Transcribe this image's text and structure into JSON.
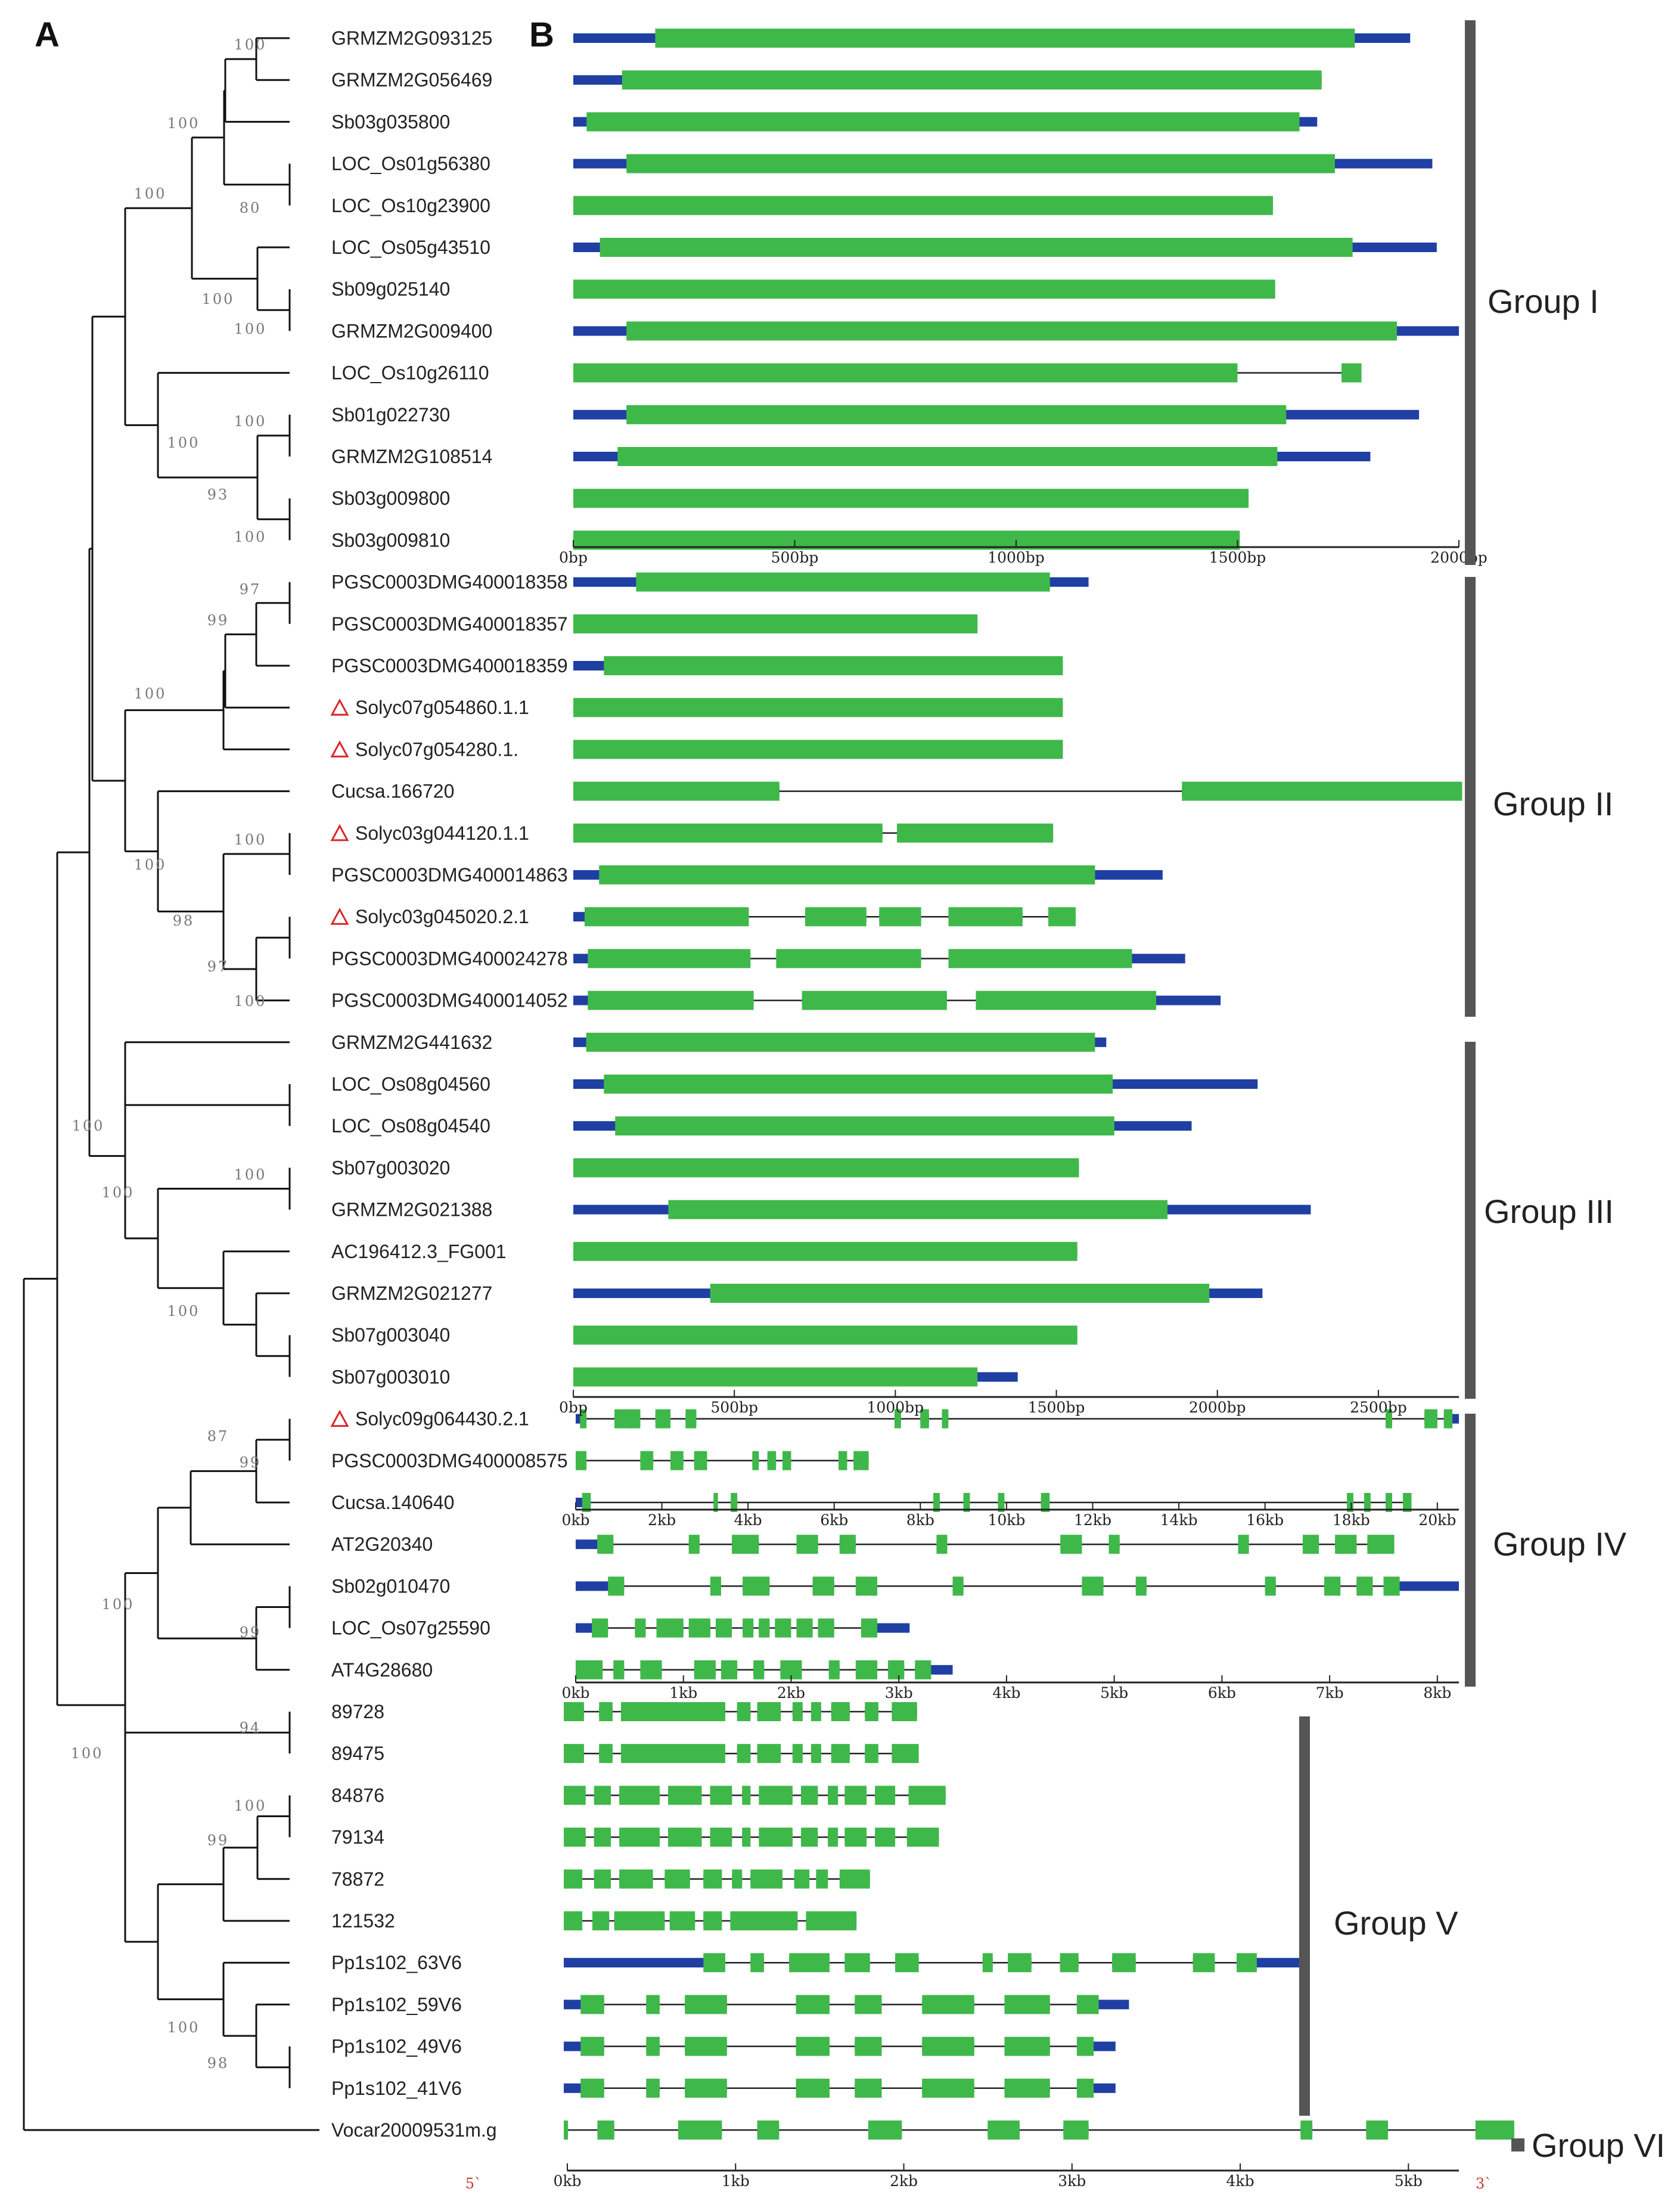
{
  "panels": {
    "a": "A",
    "b": "B"
  },
  "colors": {
    "exon": "#3fb84a",
    "utr": "#1f3fa3",
    "intron": "#222222",
    "bar": "#555555",
    "tree": "#111111",
    "marker": "#d8262a"
  },
  "legend_marks": {
    "five_prime": "5`",
    "three_prime": "3`"
  },
  "groups": [
    {
      "label": "Group I"
    },
    {
      "label": "Group II"
    },
    {
      "label": "Group III"
    },
    {
      "label": "Group IV"
    },
    {
      "label": "Group V"
    },
    {
      "label": "Group VI"
    }
  ],
  "axes": [
    {
      "max": 2000,
      "ticks": [
        "0bp",
        "500bp",
        "1000bp",
        "1500bp",
        "2000bp"
      ]
    },
    {
      "max": 2750,
      "ticks": [
        "0bp",
        "500bp",
        "1000bp",
        "1500bp",
        "2000bp",
        "2500bp"
      ]
    },
    {
      "max": 20500,
      "ticks": [
        "0kb",
        "2kb",
        "4kb",
        "6kb",
        "8kb",
        "10kb",
        "12kb",
        "14kb",
        "16kb",
        "18kb",
        "20kb"
      ]
    },
    {
      "max": 8200,
      "ticks": [
        "0kb",
        "1kb",
        "2kb",
        "3kb",
        "4kb",
        "5kb",
        "6kb",
        "7kb",
        "8kb"
      ]
    },
    {
      "max": 5300,
      "ticks": [
        "0kb",
        "1kb",
        "2kb",
        "3kb",
        "4kb",
        "5kb"
      ]
    }
  ],
  "genes": [
    {
      "name": "GRMZM2G093125",
      "axis": 0,
      "len": 1890,
      "exons": [
        [
          185,
          1765
        ]
      ]
    },
    {
      "name": "GRMZM2G056469",
      "axis": 0,
      "len": 1690,
      "exons": [
        [
          110,
          1690
        ]
      ]
    },
    {
      "name": "Sb03g035800",
      "axis": 0,
      "len": 1680,
      "exons": [
        [
          30,
          1640
        ]
      ]
    },
    {
      "name": "LOC_Os01g56380",
      "axis": 0,
      "len": 1940,
      "exons": [
        [
          120,
          1720
        ]
      ]
    },
    {
      "name": "LOC_Os10g23900",
      "axis": 0,
      "len": 1580,
      "exons": [
        [
          0,
          1580
        ]
      ]
    },
    {
      "name": "LOC_Os05g43510",
      "axis": 0,
      "len": 1950,
      "exons": [
        [
          60,
          1760
        ]
      ]
    },
    {
      "name": "Sb09g025140",
      "axis": 0,
      "len": 1585,
      "exons": [
        [
          0,
          1585
        ]
      ]
    },
    {
      "name": "GRMZM2G009400",
      "axis": 0,
      "len": 2000,
      "exons": [
        [
          120,
          1860
        ]
      ]
    },
    {
      "name": "LOC_Os10g26110",
      "axis": 0,
      "len": 1780,
      "exons": [
        [
          0,
          1500
        ],
        [
          1735,
          1780
        ]
      ]
    },
    {
      "name": "Sb01g022730",
      "axis": 0,
      "len": 1910,
      "exons": [
        [
          120,
          1610
        ]
      ]
    },
    {
      "name": "GRMZM2G108514",
      "axis": 0,
      "len": 1800,
      "exons": [
        [
          100,
          1590
        ]
      ]
    },
    {
      "name": "Sb03g009800",
      "axis": 0,
      "len": 1525,
      "exons": [
        [
          0,
          1525
        ]
      ]
    },
    {
      "name": "Sb03g009810",
      "axis": 0,
      "len": 1505,
      "exons": [
        [
          0,
          1505
        ]
      ]
    },
    {
      "name": "PGSC0003DMG400018358",
      "axis": 1,
      "len": 1600,
      "exons": [
        [
          195,
          1480
        ]
      ]
    },
    {
      "name": "PGSC0003DMG400018357",
      "axis": 1,
      "len": 1255,
      "exons": [
        [
          0,
          1255
        ]
      ]
    },
    {
      "name": "PGSC0003DMG400018359",
      "axis": 1,
      "len": 1520,
      "exons": [
        [
          95,
          1520
        ]
      ]
    },
    {
      "name": "Solyc07g054860.1.1",
      "axis": 1,
      "len": 1520,
      "exons": [
        [
          0,
          1520
        ]
      ],
      "marker": true
    },
    {
      "name": "Solyc07g054280.1.",
      "axis": 1,
      "len": 1520,
      "exons": [
        [
          0,
          1520
        ]
      ],
      "marker": true
    },
    {
      "name": "Cucsa.166720",
      "axis": 1,
      "len": 2760,
      "exons": [
        [
          0,
          640
        ],
        [
          1890,
          2760
        ]
      ]
    },
    {
      "name": "Solyc03g044120.1.1",
      "axis": 1,
      "len": 1490,
      "exons": [
        [
          0,
          960
        ],
        [
          1005,
          1490
        ]
      ],
      "marker": true
    },
    {
      "name": "PGSC0003DMG400014863",
      "axis": 1,
      "len": 1830,
      "exons": [
        [
          80,
          1620
        ]
      ]
    },
    {
      "name": "Solyc03g045020.2.1",
      "axis": 1,
      "len": 1560,
      "exons": [
        [
          35,
          545
        ],
        [
          720,
          910
        ],
        [
          950,
          1080
        ],
        [
          1165,
          1395
        ],
        [
          1475,
          1560
        ]
      ],
      "marker": true
    },
    {
      "name": "PGSC0003DMG400024278",
      "axis": 1,
      "len": 1900,
      "exons": [
        [
          45,
          550
        ],
        [
          630,
          1080
        ],
        [
          1165,
          1735
        ]
      ]
    },
    {
      "name": "PGSC0003DMG400014052",
      "axis": 1,
      "len": 2010,
      "exons": [
        [
          45,
          560
        ],
        [
          710,
          1160
        ],
        [
          1250,
          1810
        ]
      ]
    },
    {
      "name": "GRMZM2G441632",
      "axis": 1,
      "len": 1655,
      "exons": [
        [
          40,
          1620
        ]
      ]
    },
    {
      "name": "LOC_Os08g04560",
      "axis": 1,
      "len": 2125,
      "exons": [
        [
          95,
          1675
        ]
      ]
    },
    {
      "name": "LOC_Os08g04540",
      "axis": 1,
      "len": 1920,
      "exons": [
        [
          130,
          1680
        ]
      ]
    },
    {
      "name": "Sb07g003020",
      "axis": 1,
      "len": 1570,
      "exons": [
        [
          0,
          1570
        ]
      ]
    },
    {
      "name": "GRMZM2G021388",
      "axis": 1,
      "len": 2290,
      "exons": [
        [
          295,
          1845
        ]
      ]
    },
    {
      "name": "AC196412.3_FG001",
      "axis": 1,
      "len": 1565,
      "exons": [
        [
          0,
          1565
        ]
      ]
    },
    {
      "name": "GRMZM2G021277",
      "axis": 1,
      "len": 2140,
      "exons": [
        [
          425,
          1975
        ]
      ]
    },
    {
      "name": "Sb07g003040",
      "axis": 1,
      "len": 1565,
      "exons": [
        [
          0,
          1565
        ]
      ]
    },
    {
      "name": "Sb07g003010",
      "axis": 1,
      "len": 1380,
      "exons": [
        [
          0,
          1255
        ]
      ]
    },
    {
      "name": "Solyc09g064430.2.1",
      "axis": 2,
      "len": 20500,
      "exons": [
        [
          100,
          250
        ],
        [
          900,
          1150
        ],
        [
          1150,
          1500
        ],
        [
          1850,
          2200
        ],
        [
          2550,
          2800
        ],
        [
          7400,
          7550
        ],
        [
          8000,
          8200
        ],
        [
          8500,
          8650
        ],
        [
          18800,
          18950
        ],
        [
          19700,
          20000
        ],
        [
          20150,
          20350
        ]
      ],
      "marker": true
    },
    {
      "name": "PGSC0003DMG400008575",
      "axis": 2,
      "len": 6800,
      "exons": [
        [
          0,
          250
        ],
        [
          1500,
          1800
        ],
        [
          2200,
          2500
        ],
        [
          2750,
          3050
        ],
        [
          4100,
          4250
        ],
        [
          4450,
          4650
        ],
        [
          4800,
          5000
        ],
        [
          6100,
          6300
        ],
        [
          6450,
          6600
        ],
        [
          6600,
          6800
        ]
      ]
    },
    {
      "name": "Cucsa.140640",
      "axis": 2,
      "len": 19200,
      "exons": [
        [
          150,
          350
        ],
        [
          3200,
          3300
        ],
        [
          3600,
          3750
        ],
        [
          8300,
          8450
        ],
        [
          9000,
          9150
        ],
        [
          9800,
          9950
        ],
        [
          10800,
          11000
        ],
        [
          17900,
          18050
        ],
        [
          18300,
          18450
        ],
        [
          18800,
          18950
        ],
        [
          19200,
          19400
        ]
      ]
    },
    {
      "name": "AT2G20340",
      "axis": 3,
      "len": 7600,
      "exons": [
        [
          200,
          350
        ],
        [
          1050,
          1150
        ],
        [
          1450,
          1700
        ],
        [
          2050,
          2250
        ],
        [
          2450,
          2600
        ],
        [
          3350,
          3450
        ],
        [
          4500,
          4700
        ],
        [
          4950,
          5050
        ],
        [
          6150,
          6250
        ],
        [
          6750,
          6900
        ],
        [
          7050,
          7250
        ],
        [
          7350,
          7600
        ]
      ]
    },
    {
      "name": "Sb02g010470",
      "axis": 3,
      "len": 8200,
      "exons": [
        [
          300,
          450
        ],
        [
          1250,
          1350
        ],
        [
          1550,
          1800
        ],
        [
          2200,
          2400
        ],
        [
          2600,
          2800
        ],
        [
          3500,
          3600
        ],
        [
          4700,
          4900
        ],
        [
          5200,
          5300
        ],
        [
          6400,
          6500
        ],
        [
          6950,
          7100
        ],
        [
          7250,
          7400
        ],
        [
          7500,
          7650
        ]
      ]
    },
    {
      "name": "LOC_Os07g25590",
      "axis": 3,
      "len": 3100,
      "exons": [
        [
          150,
          300
        ],
        [
          550,
          650
        ],
        [
          750,
          1000
        ],
        [
          1050,
          1250
        ],
        [
          1300,
          1450
        ],
        [
          1550,
          1650
        ],
        [
          1700,
          1800
        ],
        [
          1850,
          2000
        ],
        [
          2050,
          2200
        ],
        [
          2250,
          2400
        ],
        [
          2650,
          2800
        ]
      ]
    },
    {
      "name": "AT4G28680",
      "axis": 3,
      "len": 3500,
      "exons": [
        [
          0,
          250
        ],
        [
          350,
          450
        ],
        [
          600,
          800
        ],
        [
          1100,
          1300
        ],
        [
          1350,
          1500
        ],
        [
          1650,
          1750
        ],
        [
          1900,
          2100
        ],
        [
          2350,
          2450
        ],
        [
          2600,
          2800
        ],
        [
          2900,
          3050
        ],
        [
          3150,
          3300
        ]
      ]
    },
    {
      "name": "89728",
      "axis": 4,
      "len": 2100,
      "exons": [
        [
          0,
          120
        ],
        [
          210,
          290
        ],
        [
          340,
          960
        ],
        [
          1030,
          1110
        ],
        [
          1150,
          1290
        ],
        [
          1360,
          1420
        ],
        [
          1470,
          1530
        ],
        [
          1590,
          1700
        ],
        [
          1790,
          1870
        ],
        [
          1950,
          2100
        ]
      ],
      "offset": -6
    },
    {
      "name": "89475",
      "axis": 4,
      "len": 2110,
      "exons": [
        [
          0,
          120
        ],
        [
          210,
          290
        ],
        [
          340,
          960
        ],
        [
          1030,
          1110
        ],
        [
          1150,
          1290
        ],
        [
          1360,
          1420
        ],
        [
          1470,
          1530
        ],
        [
          1590,
          1700
        ],
        [
          1790,
          1870
        ],
        [
          1950,
          2110
        ]
      ],
      "offset": -6
    },
    {
      "name": "84876",
      "axis": 4,
      "len": 2270,
      "exons": [
        [
          0,
          130
        ],
        [
          180,
          280
        ],
        [
          330,
          570
        ],
        [
          620,
          820
        ],
        [
          870,
          1000
        ],
        [
          1060,
          1110
        ],
        [
          1160,
          1360
        ],
        [
          1410,
          1510
        ],
        [
          1570,
          1630
        ],
        [
          1670,
          1800
        ],
        [
          1850,
          1970
        ],
        [
          2050,
          2270
        ]
      ],
      "offset": -6
    },
    {
      "name": "79134",
      "axis": 4,
      "len": 2230,
      "exons": [
        [
          0,
          130
        ],
        [
          180,
          280
        ],
        [
          330,
          570
        ],
        [
          620,
          820
        ],
        [
          870,
          1000
        ],
        [
          1060,
          1110
        ],
        [
          1160,
          1360
        ],
        [
          1410,
          1510
        ],
        [
          1570,
          1630
        ],
        [
          1670,
          1800
        ],
        [
          1850,
          1970
        ],
        [
          2040,
          2230
        ]
      ],
      "offset": -6
    },
    {
      "name": "78872",
      "axis": 4,
      "len": 1820,
      "exons": [
        [
          0,
          110
        ],
        [
          180,
          280
        ],
        [
          330,
          530
        ],
        [
          600,
          750
        ],
        [
          830,
          940
        ],
        [
          1000,
          1060
        ],
        [
          1110,
          1300
        ],
        [
          1370,
          1460
        ],
        [
          1500,
          1570
        ],
        [
          1640,
          1820
        ]
      ],
      "offset": -6
    },
    {
      "name": "121532",
      "axis": 4,
      "len": 1740,
      "exons": [
        [
          0,
          110
        ],
        [
          170,
          270
        ],
        [
          300,
          600
        ],
        [
          630,
          780
        ],
        [
          830,
          940
        ],
        [
          990,
          1390
        ],
        [
          1440,
          1740
        ]
      ],
      "offset": -6
    },
    {
      "name": "Pp1s102_63V6",
      "axis": 4,
      "len": 4390,
      "exons": [
        [
          830,
          960
        ],
        [
          1110,
          1190
        ],
        [
          1340,
          1580
        ],
        [
          1670,
          1820
        ],
        [
          1970,
          2110
        ],
        [
          2490,
          2550
        ],
        [
          2640,
          2780
        ],
        [
          2950,
          3060
        ],
        [
          3260,
          3400
        ],
        [
          3740,
          3870
        ],
        [
          4000,
          4120
        ]
      ],
      "offset": -6
    },
    {
      "name": "Pp1s102_59V6",
      "axis": 4,
      "len": 3360,
      "exons": [
        [
          100,
          240
        ],
        [
          490,
          570
        ],
        [
          720,
          970
        ],
        [
          1380,
          1580
        ],
        [
          1730,
          1890
        ],
        [
          2130,
          2440
        ],
        [
          2620,
          2890
        ],
        [
          3050,
          3180
        ]
      ],
      "offset": -6
    },
    {
      "name": "Pp1s102_49V6",
      "axis": 4,
      "len": 3280,
      "exons": [
        [
          100,
          240
        ],
        [
          490,
          570
        ],
        [
          720,
          970
        ],
        [
          1380,
          1580
        ],
        [
          1730,
          1890
        ],
        [
          2130,
          2440
        ],
        [
          2620,
          2890
        ],
        [
          3050,
          3150
        ]
      ],
      "offset": -6
    },
    {
      "name": "Pp1s102_41V6",
      "axis": 4,
      "len": 3280,
      "exons": [
        [
          100,
          240
        ],
        [
          490,
          570
        ],
        [
          720,
          970
        ],
        [
          1380,
          1580
        ],
        [
          1730,
          1890
        ],
        [
          2130,
          2440
        ],
        [
          2620,
          2890
        ],
        [
          3050,
          3150
        ]
      ],
      "offset": -6
    },
    {
      "name": "Vocar20009531m.g",
      "axis": 4,
      "len": 5650,
      "exons": [
        [
          0,
          25
        ],
        [
          200,
          300
        ],
        [
          680,
          940
        ],
        [
          1150,
          1280
        ],
        [
          1810,
          2010
        ],
        [
          2520,
          2710
        ],
        [
          2970,
          3120
        ],
        [
          4380,
          4450
        ],
        [
          4770,
          4900
        ],
        [
          5420,
          5650
        ]
      ],
      "offset": -6
    }
  ],
  "bootstraps": [
    "100",
    "100",
    "100",
    "80",
    "100",
    "100",
    "100",
    "100",
    "93",
    "100",
    "97",
    "99",
    "100",
    "100",
    "100",
    "98",
    "97",
    "100",
    "100",
    "100",
    "100",
    "100",
    "87",
    "99",
    "100",
    "99",
    "100",
    "94",
    "100",
    "99",
    "100",
    "98"
  ]
}
